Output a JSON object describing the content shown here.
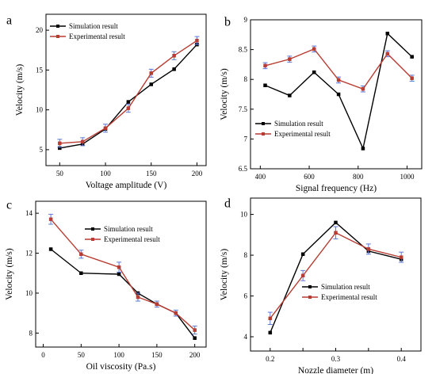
{
  "chart_data": [
    {
      "panel": "a",
      "type": "line",
      "xlabel": "Voltage amplitude (V)",
      "ylabel": "Velocity (m/s)",
      "xlim": [
        35,
        210
      ],
      "ylim": [
        3,
        22
      ],
      "xticks": [
        50,
        100,
        150,
        200
      ],
      "yticks": [
        5,
        10,
        15,
        20
      ],
      "legend_position": "top-left",
      "series": [
        {
          "name": "Simulation result",
          "color": "#000000",
          "marker": "square",
          "x": [
            50,
            75,
            100,
            125,
            150,
            175,
            200
          ],
          "y": [
            5.2,
            5.7,
            7.6,
            11.0,
            13.2,
            15.1,
            18.2
          ]
        },
        {
          "name": "Experimental result",
          "color": "#b83c32",
          "marker": "square",
          "x": [
            50,
            75,
            100,
            125,
            150,
            175,
            200
          ],
          "y": [
            5.8,
            6.0,
            7.7,
            10.2,
            14.6,
            16.8,
            18.7
          ],
          "error": [
            0.5,
            0.5,
            0.5,
            0.5,
            0.5,
            0.5,
            0.5
          ]
        }
      ]
    },
    {
      "panel": "b",
      "type": "line",
      "xlabel": "Signal frequency (Hz)",
      "ylabel": "Velocity (m/s)",
      "xlim": [
        360,
        1060
      ],
      "ylim": [
        6.5,
        9.0
      ],
      "xticks": [
        400,
        600,
        800,
        1000
      ],
      "yticks": [
        6.5,
        7.0,
        7.5,
        8.0,
        8.5,
        9.0
      ],
      "legend_position": "bottom-left",
      "series": [
        {
          "name": "Simulation result",
          "color": "#000000",
          "marker": "square",
          "x": [
            420,
            520,
            620,
            720,
            820,
            920,
            1020
          ],
          "y": [
            7.9,
            7.73,
            8.12,
            7.75,
            6.84,
            8.77,
            8.38
          ]
        },
        {
          "name": "Experimental result",
          "color": "#b83c32",
          "marker": "square",
          "x": [
            420,
            520,
            620,
            720,
            820,
            920,
            1020
          ],
          "y": [
            8.23,
            8.34,
            8.51,
            7.99,
            7.84,
            8.43,
            8.02
          ],
          "error": [
            0.05,
            0.05,
            0.05,
            0.05,
            0.05,
            0.05,
            0.05
          ]
        }
      ]
    },
    {
      "panel": "c",
      "type": "line",
      "xlabel": "Oil viscosity (Pa.s)",
      "ylabel": "Velocity (m/s)",
      "xlim": [
        -10,
        215
      ],
      "ylim": [
        7.3,
        14.6
      ],
      "xticks": [
        0,
        50,
        100,
        150,
        200
      ],
      "yticks": [
        8,
        10,
        12,
        14
      ],
      "legend_position": "top-right",
      "series": [
        {
          "name": "Simulation result",
          "color": "#000000",
          "marker": "square",
          "x": [
            10,
            50,
            100,
            125,
            150,
            175,
            200
          ],
          "y": [
            12.2,
            11.0,
            10.95,
            10.0,
            9.45,
            9.0,
            7.75
          ]
        },
        {
          "name": "Experimental result",
          "color": "#b83c32",
          "marker": "square",
          "x": [
            10,
            50,
            100,
            125,
            150,
            175,
            200
          ],
          "y": [
            13.7,
            11.95,
            11.3,
            9.8,
            9.45,
            9.0,
            8.15
          ],
          "error": [
            0.25,
            0.2,
            0.25,
            0.2,
            0.15,
            0.15,
            0.2
          ]
        }
      ]
    },
    {
      "panel": "d",
      "type": "line",
      "xlabel": "Nozzle diameter (m)",
      "ylabel": "Velocity (m/s)",
      "xlim": [
        0.17,
        0.43
      ],
      "ylim": [
        3.3,
        10.8
      ],
      "xticks": [
        0.2,
        0.25,
        0.3,
        0.35,
        0.4
      ],
      "xtick_labels": [
        "0.2",
        "",
        "0.3",
        "",
        "0.4"
      ],
      "yticks": [
        4,
        6,
        8,
        10
      ],
      "legend_position": "bottom-right",
      "series": [
        {
          "name": "Simulation result",
          "color": "#000000",
          "marker": "square",
          "x": [
            0.2,
            0.25,
            0.3,
            0.35,
            0.4
          ],
          "y": [
            4.2,
            8.05,
            9.6,
            8.2,
            7.8
          ]
        },
        {
          "name": "Experimental result",
          "color": "#b83c32",
          "marker": "square",
          "x": [
            0.2,
            0.25,
            0.3,
            0.35,
            0.4
          ],
          "y": [
            4.9,
            7.0,
            9.1,
            8.3,
            7.9
          ],
          "error": [
            0.3,
            0.25,
            0.3,
            0.25,
            0.25
          ]
        }
      ]
    }
  ]
}
